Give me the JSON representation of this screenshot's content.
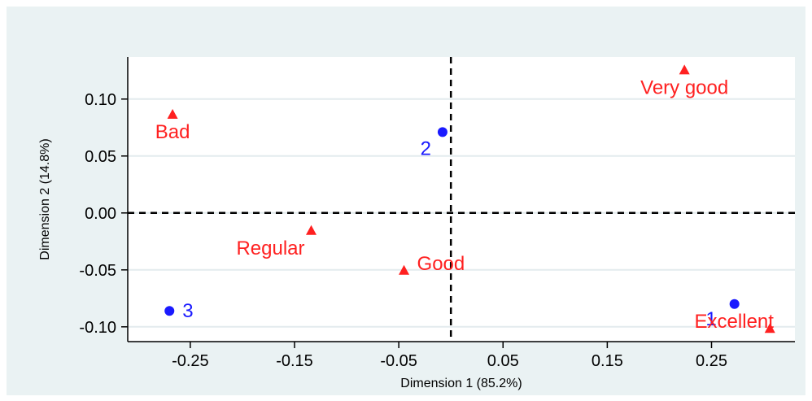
{
  "chart_data": {
    "type": "scatter",
    "title": "",
    "xlabel": "Dimension 1 (85.2%)",
    "ylabel": "Dimension 2 (14.8%)",
    "xlim": [
      -0.31,
      0.33
    ],
    "ylim": [
      -0.113,
      0.137
    ],
    "xticks": [
      -0.25,
      -0.15,
      -0.05,
      0.05,
      0.15,
      0.25
    ],
    "xtick_labels": [
      "-0.25",
      "-0.15",
      "-0.05",
      "0.05",
      "0.15",
      "0.25"
    ],
    "yticks": [
      0.1,
      0.05,
      0.0,
      -0.05,
      -0.1
    ],
    "ytick_labels": [
      "0.10",
      "0.05",
      "0.00",
      "-0.05",
      "-0.10"
    ],
    "grid": "horizontal",
    "reference_lines": {
      "x": 0.0,
      "y": 0.0
    },
    "series": [
      {
        "marker": "circle",
        "color": "#1a1aff",
        "points": [
          {
            "label": "1",
            "x": 0.272,
            "y": -0.08
          },
          {
            "label": "2",
            "x": -0.008,
            "y": 0.071
          },
          {
            "label": "3",
            "x": -0.27,
            "y": -0.086
          }
        ]
      },
      {
        "marker": "triangle",
        "color": "#ff2020",
        "points": [
          {
            "label": "Very good",
            "x": 0.224,
            "y": 0.126
          },
          {
            "label": "Bad",
            "x": -0.267,
            "y": 0.087
          },
          {
            "label": "Regular",
            "x": -0.134,
            "y": -0.015
          },
          {
            "label": "Good",
            "x": -0.045,
            "y": -0.05
          },
          {
            "label": "Excellent",
            "x": 0.306,
            "y": -0.101
          }
        ]
      }
    ]
  }
}
